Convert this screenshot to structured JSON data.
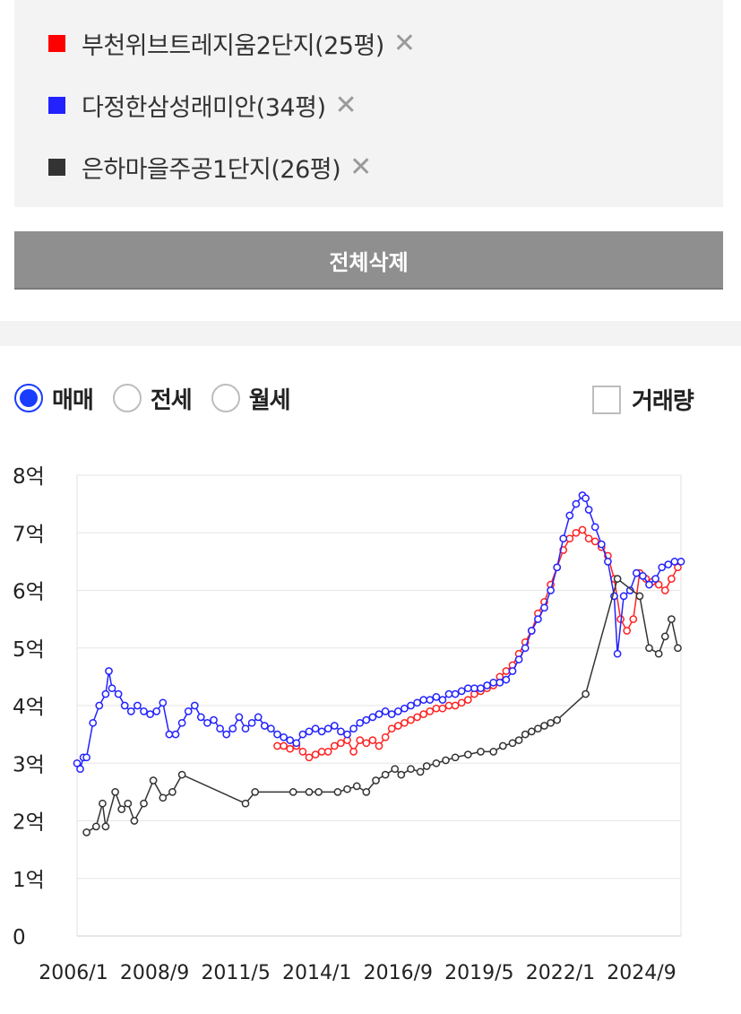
{
  "compare_list": [
    {
      "name": "부천위브트레지움2단지(25평)",
      "color": "#ff0000"
    },
    {
      "name": "다정한삼성래미안(34평)",
      "color": "#2222ff"
    },
    {
      "name": "은하마을주공1단지(26평)",
      "color": "#333333"
    }
  ],
  "remove_icon": "close-icon",
  "remove_glyph": "✕",
  "delete_all_label": "전체삭제",
  "trade_types": [
    {
      "label": "매매",
      "checked": true
    },
    {
      "label": "전세",
      "checked": false
    },
    {
      "label": "월세",
      "checked": false
    }
  ],
  "volume_label": "거래량",
  "chart_data": {
    "type": "line",
    "title": "",
    "xlabel": "",
    "ylabel": "",
    "ylim": [
      0,
      8
    ],
    "y_ticks": [
      "0",
      "1억",
      "2억",
      "3억",
      "4억",
      "5억",
      "6억",
      "7억",
      "8억"
    ],
    "xlim": [
      2006.0,
      2025.0
    ],
    "x_tick_labels": [
      "2006/1",
      "2008/9",
      "2011/5",
      "2014/1",
      "2016/9",
      "2019/5",
      "2022/1",
      "2024/9"
    ],
    "grid": true,
    "series": [
      {
        "name": "부천위브트레지움2단지(25평)",
        "color": "#ff2222",
        "x": [
          2012.3,
          2012.5,
          2012.7,
          2012.9,
          2013.1,
          2013.3,
          2013.5,
          2013.7,
          2013.9,
          2014.1,
          2014.3,
          2014.5,
          2014.7,
          2014.9,
          2015.1,
          2015.3,
          2015.5,
          2015.7,
          2015.9,
          2016.1,
          2016.3,
          2016.5,
          2016.7,
          2016.9,
          2017.1,
          2017.3,
          2017.5,
          2017.7,
          2017.9,
          2018.1,
          2018.3,
          2018.5,
          2018.7,
          2018.9,
          2019.1,
          2019.3,
          2019.5,
          2019.7,
          2019.9,
          2020.1,
          2020.3,
          2020.5,
          2020.7,
          2020.9,
          2021.1,
          2021.3,
          2021.5,
          2021.7,
          2021.9,
          2022.1,
          2022.3,
          2022.5,
          2022.7,
          2022.9,
          2023.1,
          2023.3,
          2023.5,
          2023.7,
          2023.9,
          2024.1,
          2024.3,
          2024.5,
          2024.7,
          2024.9
        ],
        "values": [
          3.3,
          3.3,
          3.25,
          3.3,
          3.2,
          3.1,
          3.15,
          3.2,
          3.2,
          3.3,
          3.35,
          3.4,
          3.2,
          3.4,
          3.35,
          3.4,
          3.3,
          3.45,
          3.6,
          3.65,
          3.7,
          3.75,
          3.8,
          3.85,
          3.9,
          3.95,
          3.95,
          4.0,
          4.0,
          4.05,
          4.1,
          4.2,
          4.25,
          4.3,
          4.35,
          4.5,
          4.6,
          4.7,
          4.9,
          5.1,
          5.3,
          5.6,
          5.8,
          6.1,
          6.4,
          6.7,
          6.9,
          7.0,
          7.05,
          6.9,
          6.85,
          6.75,
          6.6,
          6.2,
          5.5,
          5.3,
          5.5,
          6.3,
          6.2,
          6.15,
          6.1,
          6.0,
          6.2,
          6.4
        ]
      },
      {
        "name": "다정한삼성래미안(34평)",
        "color": "#2222ff",
        "x": [
          2006.0,
          2006.1,
          2006.2,
          2006.3,
          2006.5,
          2006.7,
          2006.9,
          2007.0,
          2007.1,
          2007.3,
          2007.5,
          2007.7,
          2007.9,
          2008.1,
          2008.3,
          2008.5,
          2008.7,
          2008.9,
          2009.1,
          2009.3,
          2009.5,
          2009.7,
          2009.9,
          2010.1,
          2010.3,
          2010.5,
          2010.7,
          2010.9,
          2011.1,
          2011.3,
          2011.5,
          2011.7,
          2011.9,
          2012.1,
          2012.3,
          2012.5,
          2012.7,
          2012.9,
          2013.1,
          2013.3,
          2013.5,
          2013.7,
          2013.9,
          2014.1,
          2014.3,
          2014.5,
          2014.7,
          2014.9,
          2015.1,
          2015.3,
          2015.5,
          2015.7,
          2015.9,
          2016.1,
          2016.3,
          2016.5,
          2016.7,
          2016.9,
          2017.1,
          2017.3,
          2017.5,
          2017.7,
          2017.9,
          2018.1,
          2018.3,
          2018.5,
          2018.7,
          2018.9,
          2019.1,
          2019.3,
          2019.5,
          2019.7,
          2019.9,
          2020.1,
          2020.3,
          2020.5,
          2020.7,
          2020.9,
          2021.1,
          2021.3,
          2021.5,
          2021.7,
          2021.9,
          2022.0,
          2022.1,
          2022.3,
          2022.5,
          2022.7,
          2022.9,
          2023.0,
          2023.2,
          2023.4,
          2023.6,
          2023.8,
          2024.0,
          2024.2,
          2024.4,
          2024.6,
          2024.8,
          2025.0
        ],
        "values": [
          3.0,
          2.9,
          3.1,
          3.1,
          3.7,
          4.0,
          4.2,
          4.6,
          4.3,
          4.2,
          4.0,
          3.9,
          4.0,
          3.9,
          3.85,
          3.9,
          4.05,
          3.5,
          3.5,
          3.7,
          3.9,
          4.0,
          3.8,
          3.7,
          3.75,
          3.6,
          3.5,
          3.6,
          3.8,
          3.6,
          3.7,
          3.8,
          3.65,
          3.6,
          3.5,
          3.45,
          3.4,
          3.35,
          3.5,
          3.55,
          3.6,
          3.55,
          3.6,
          3.65,
          3.55,
          3.5,
          3.6,
          3.7,
          3.75,
          3.8,
          3.85,
          3.9,
          3.85,
          3.9,
          3.95,
          4.0,
          4.05,
          4.1,
          4.1,
          4.15,
          4.1,
          4.2,
          4.2,
          4.25,
          4.3,
          4.3,
          4.3,
          4.35,
          4.4,
          4.4,
          4.45,
          4.6,
          4.8,
          5.0,
          5.3,
          5.5,
          5.7,
          6.0,
          6.4,
          6.9,
          7.3,
          7.5,
          7.65,
          7.6,
          7.4,
          7.1,
          6.8,
          6.5,
          5.9,
          4.9,
          5.9,
          6.0,
          6.3,
          6.25,
          6.1,
          6.2,
          6.4,
          6.45,
          6.5,
          6.5
        ]
      },
      {
        "name": "은하마을주공1단지(26평)",
        "color": "#333333",
        "x": [
          2006.3,
          2006.6,
          2006.8,
          2006.9,
          2007.2,
          2007.4,
          2007.6,
          2007.8,
          2008.1,
          2008.4,
          2008.7,
          2009.0,
          2009.3,
          2011.3,
          2011.6,
          2012.8,
          2013.3,
          2013.6,
          2014.2,
          2014.5,
          2014.8,
          2015.1,
          2015.4,
          2015.7,
          2016.0,
          2016.2,
          2016.5,
          2016.8,
          2017.0,
          2017.3,
          2017.6,
          2017.9,
          2018.3,
          2018.7,
          2019.1,
          2019.4,
          2019.7,
          2019.9,
          2020.1,
          2020.3,
          2020.5,
          2020.7,
          2020.9,
          2021.1,
          2022.0,
          2023.0,
          2023.7,
          2024.0,
          2024.3,
          2024.5,
          2024.7,
          2024.9
        ],
        "values": [
          1.8,
          1.9,
          2.3,
          1.9,
          2.5,
          2.2,
          2.3,
          2.0,
          2.3,
          2.7,
          2.4,
          2.5,
          2.8,
          2.3,
          2.5,
          2.5,
          2.5,
          2.5,
          2.5,
          2.55,
          2.6,
          2.5,
          2.7,
          2.8,
          2.9,
          2.8,
          2.9,
          2.85,
          2.95,
          3.0,
          3.05,
          3.1,
          3.15,
          3.2,
          3.2,
          3.3,
          3.35,
          3.4,
          3.5,
          3.55,
          3.6,
          3.65,
          3.7,
          3.75,
          4.2,
          6.2,
          5.9,
          5.0,
          4.9,
          5.2,
          5.5,
          5.0
        ]
      }
    ]
  }
}
